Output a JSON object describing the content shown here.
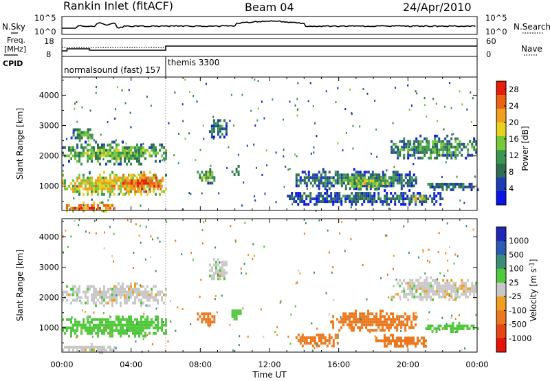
{
  "header": {
    "station": "Rankin Inlet (fitACF)",
    "beam": "Beam 04",
    "date": "24/Apr/2010"
  },
  "noise_panel": {
    "left_label": "N.Sky",
    "right_label": "N.Search",
    "left_ticks": [
      "10^5",
      "10^0"
    ],
    "right_ticks": [
      "10^5",
      "10^0"
    ]
  },
  "freq_panel": {
    "left_label_1": "Freq.",
    "left_label_2": "[MHz]",
    "left_ticks": [
      "18",
      "8"
    ],
    "right_label": "Nave",
    "right_ticks": [
      "60",
      "0"
    ]
  },
  "cpid": {
    "label": "CPID",
    "modes": [
      {
        "name": "normalsound (fast) 157",
        "start_hour": 0,
        "end_hour": 6
      },
      {
        "name": "themis 3300",
        "start_hour": 6,
        "end_hour": 24
      }
    ]
  },
  "colors": {
    "power_scale": [
      "#0a14e6",
      "#1e3cb4",
      "#2d6e50",
      "#3c9650",
      "#78c83c",
      "#e6d21e",
      "#f0a01e",
      "#eb6414",
      "#e61e0a"
    ],
    "velocity_scale": [
      "#1e28b4",
      "#2d5ab4",
      "#3c8c78",
      "#50c83c",
      "#c8c8c8",
      "#f0a01e",
      "#eb781e",
      "#e64614",
      "#e6140a"
    ]
  },
  "chart_data": [
    {
      "type": "heatmap",
      "title": "Power",
      "xlabel": "Time UT",
      "ylabel": "Slant Range [km]",
      "x_ticks": [
        "00:00",
        "04:00",
        "08:00",
        "12:00",
        "16:00",
        "20:00",
        "00:00"
      ],
      "y_ticks": [
        "1000",
        "2000",
        "3000",
        "4000"
      ],
      "xlim": [
        0,
        24
      ],
      "ylim": [
        200,
        4600
      ],
      "colorbar": {
        "label": "Power [dB]",
        "ticks": [
          "4",
          "8",
          "12",
          "16",
          "20",
          "24",
          "28"
        ],
        "range": [
          0,
          30
        ]
      },
      "regions": [
        {
          "t0": 0.0,
          "t1": 6.0,
          "r0": 1750,
          "r1": 2500,
          "value": 14
        },
        {
          "t0": 0.0,
          "t1": 6.0,
          "r0": 700,
          "r1": 1500,
          "value": 20
        },
        {
          "t0": 3.5,
          "t1": 5.8,
          "r0": 800,
          "r1": 1500,
          "value": 27
        },
        {
          "t0": 0.0,
          "t1": 3.0,
          "r0": 200,
          "r1": 500,
          "value": 24
        },
        {
          "t0": 0.5,
          "t1": 1.8,
          "r0": 2500,
          "r1": 3000,
          "value": 12
        },
        {
          "t0": 8.5,
          "t1": 9.5,
          "r0": 2600,
          "r1": 3300,
          "value": 10
        },
        {
          "t0": 7.8,
          "t1": 8.8,
          "r0": 1100,
          "r1": 1600,
          "value": 15
        },
        {
          "t0": 9.8,
          "t1": 10.3,
          "r0": 1300,
          "r1": 1700,
          "value": 12
        },
        {
          "t0": 13.5,
          "t1": 20.5,
          "r0": 900,
          "r1": 1600,
          "value": 10
        },
        {
          "t0": 16.5,
          "t1": 19.0,
          "r0": 900,
          "r1": 1400,
          "value": 16
        },
        {
          "t0": 13.0,
          "t1": 22.0,
          "r0": 400,
          "r1": 900,
          "value": 8
        },
        {
          "t0": 19.0,
          "t1": 24.0,
          "r0": 1900,
          "r1": 2700,
          "value": 12
        },
        {
          "t0": 21.0,
          "t1": 24.0,
          "r0": 900,
          "r1": 1200,
          "value": 10
        },
        {
          "t0": 20.3,
          "t1": 21.0,
          "r0": 500,
          "r1": 800,
          "value": 18
        }
      ]
    },
    {
      "type": "heatmap",
      "title": "Velocity",
      "xlabel": "Time UT",
      "ylabel": "Slant Range [km]",
      "x_ticks": [
        "00:00",
        "04:00",
        "08:00",
        "12:00",
        "16:00",
        "20:00",
        "00:00"
      ],
      "y_ticks": [
        "1000",
        "2000",
        "3000",
        "4000"
      ],
      "xlim": [
        0,
        24
      ],
      "ylim": [
        200,
        4600
      ],
      "colorbar": {
        "label": "Velocity [m s-1]",
        "ticks": [
          "1000",
          "500",
          "100",
          "25",
          "-25",
          "-100",
          "-500",
          "-1000"
        ],
        "range": [
          -1200,
          1200
        ]
      },
      "regions": [
        {
          "t0": 0.0,
          "t1": 6.0,
          "r0": 1750,
          "r1": 2500,
          "value": 0
        },
        {
          "t0": 0.0,
          "t1": 6.0,
          "r0": 700,
          "r1": 1500,
          "value": 60
        },
        {
          "t0": 0.0,
          "t1": 3.0,
          "r0": 200,
          "r1": 500,
          "value": 0
        },
        {
          "t0": 8.5,
          "t1": 9.5,
          "r0": 2600,
          "r1": 3300,
          "value": 0
        },
        {
          "t0": 7.8,
          "t1": 8.8,
          "r0": 1100,
          "r1": 1600,
          "value": -150
        },
        {
          "t0": 9.8,
          "t1": 10.3,
          "r0": 1300,
          "r1": 1700,
          "value": 60
        },
        {
          "t0": 15.5,
          "t1": 20.5,
          "r0": 900,
          "r1": 1600,
          "value": -300
        },
        {
          "t0": 13.5,
          "t1": 16.0,
          "r0": 400,
          "r1": 900,
          "value": -300
        },
        {
          "t0": 18.0,
          "t1": 21.0,
          "r0": 400,
          "r1": 800,
          "value": -300
        },
        {
          "t0": 19.0,
          "t1": 24.0,
          "r0": 1900,
          "r1": 2700,
          "value": 0
        },
        {
          "t0": 21.0,
          "t1": 24.0,
          "r0": 900,
          "r1": 1200,
          "value": 60
        }
      ]
    }
  ]
}
